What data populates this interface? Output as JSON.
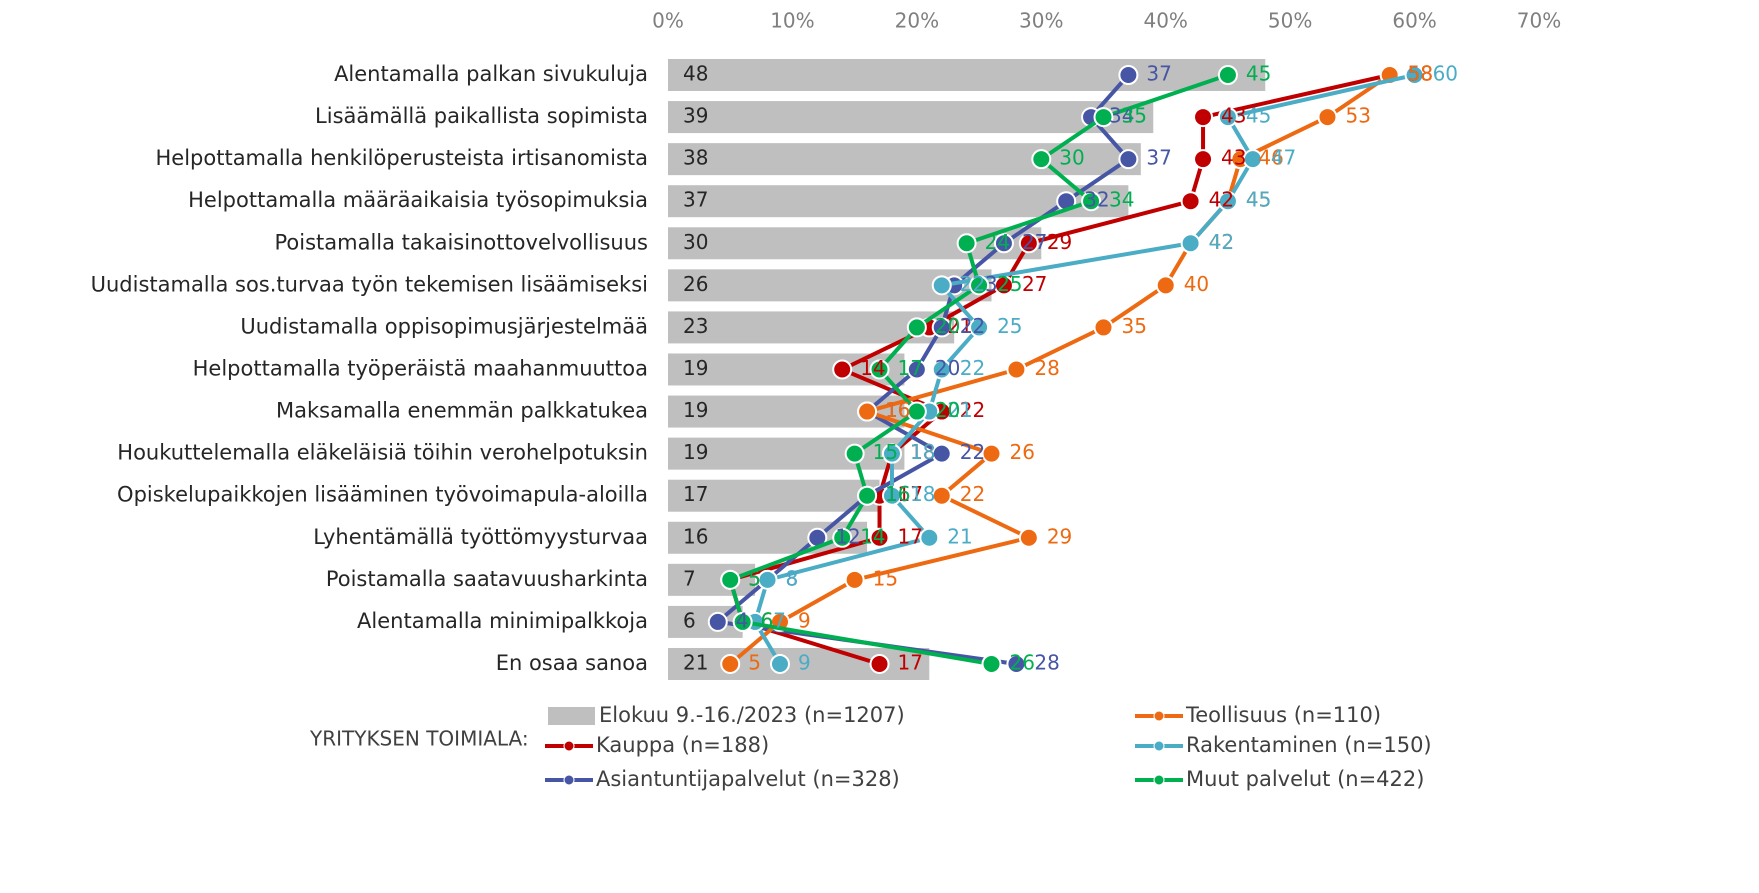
{
  "chart_data": {
    "type": "bar",
    "orientation": "horizontal",
    "categories": [
      "Alentamalla palkan sivukuluja",
      "Lisäämällä paikallista sopimista",
      "Helpottamalla henkilöperusteista irtisanomista",
      "Helpottamalla määräaikaisia työsopimuksia",
      "Poistamalla takaisinottovelvollisuus",
      "Uudistamalla sos.turvaa työn tekemisen lisäämiseksi",
      "Uudistamalla oppisopimusjärjestelmää",
      "Helpottamalla työperäistä maahanmuuttoa",
      "Maksamalla enemmän palkkatukea",
      "Houkuttelemalla eläkeläisiä töihin verohelpotuksin",
      "Opiskelupaikkojen lisääminen työvoimapula-aloilla",
      "Lyhentämällä työttömyysturvaa",
      "Poistamalla saatavuusharkinta",
      "Alentamalla minimipalkkoja",
      "En osaa sanoa"
    ],
    "series": [
      {
        "name": "Elokuu 9.-16./2023 (n=1207)",
        "type": "bar",
        "color": "#bfbfbf",
        "values": [
          48,
          39,
          38,
          37,
          30,
          26,
          23,
          19,
          19,
          19,
          17,
          16,
          7,
          6,
          21
        ]
      },
      {
        "name": "Kauppa (n=188)",
        "type": "line",
        "color": "#c00000",
        "values": [
          58,
          43,
          43,
          42,
          29,
          27,
          21,
          14,
          22,
          18,
          17,
          17,
          5,
          6,
          17
        ]
      },
      {
        "name": "Asiantuntijapalvelut (n=328)",
        "type": "line",
        "color": "#4755a5",
        "values": [
          37,
          34,
          37,
          32,
          27,
          23,
          22,
          20,
          16,
          22,
          16,
          12,
          8,
          4,
          28
        ]
      },
      {
        "name": "Teollisuus (n=110)",
        "type": "line",
        "color": "#ed6a12",
        "values": [
          58,
          53,
          46,
          45,
          42,
          40,
          35,
          28,
          16,
          26,
          22,
          29,
          15,
          9,
          5
        ]
      },
      {
        "name": "Rakentaminen (n=150)",
        "type": "line",
        "color": "#4bacc6",
        "values": [
          60,
          45,
          47,
          45,
          42,
          22,
          25,
          22,
          21,
          18,
          18,
          21,
          8,
          7,
          9
        ]
      },
      {
        "name": "Muut palvelut (n=422)",
        "type": "line",
        "color": "#00b050",
        "values": [
          45,
          35,
          30,
          34,
          24,
          25,
          20,
          17,
          20,
          15,
          16,
          14,
          5,
          6,
          26
        ]
      }
    ],
    "legend_title": "YRITYKSEN TOIMIALA:",
    "xlim": [
      0,
      70
    ],
    "xticks": [
      {
        "value": 0,
        "label": "0%"
      },
      {
        "value": 10,
        "label": "10%"
      },
      {
        "value": 20,
        "label": "20%"
      },
      {
        "value": 30,
        "label": "30%"
      },
      {
        "value": 40,
        "label": "40%"
      },
      {
        "value": 50,
        "label": "50%"
      },
      {
        "value": 60,
        "label": "60%"
      },
      {
        "value": 70,
        "label": "70%"
      }
    ],
    "grid": false,
    "legend_position": "bottom"
  }
}
